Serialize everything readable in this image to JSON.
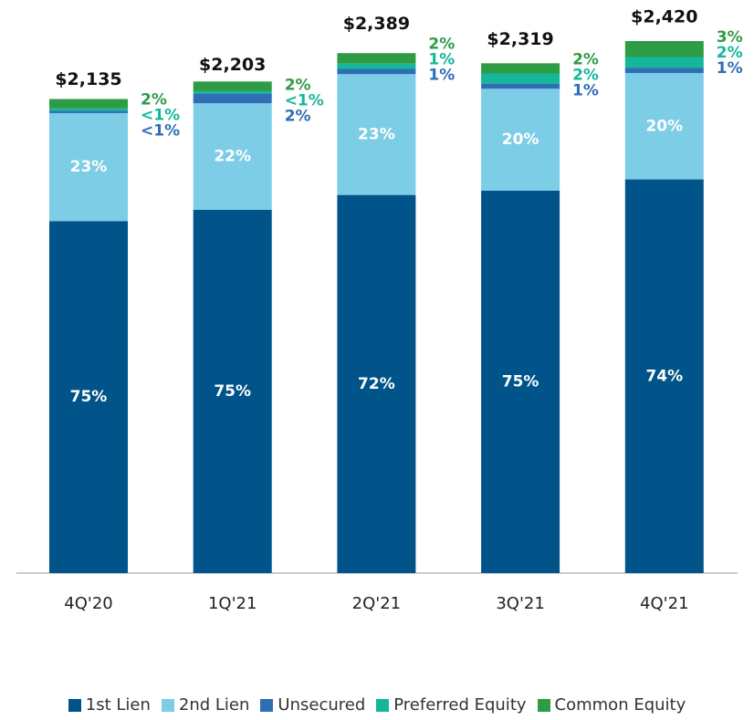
{
  "chart_data": {
    "type": "stacked-bar",
    "categories": [
      "4Q'20",
      "1Q'21",
      "2Q'21",
      "3Q'21",
      "4Q'21"
    ],
    "totals": {
      "values": [
        2135,
        2203,
        2389,
        2319,
        2420
      ],
      "value_labels": [
        "$2,135",
        "$2,203",
        "$2,389",
        "$2,319",
        "$2,420"
      ]
    },
    "series": [
      {
        "name": "1st Lien",
        "color": "#00548a",
        "values": [
          75,
          75,
          72,
          75,
          74
        ],
        "value_labels": [
          "75%",
          "75%",
          "72%",
          "75%",
          "74%"
        ]
      },
      {
        "name": "2nd Lien",
        "color": "#7dcde6",
        "values": [
          23,
          22,
          23,
          20,
          20
        ],
        "value_labels": [
          "23%",
          "22%",
          "23%",
          "20%",
          "20%"
        ]
      },
      {
        "name": "Unsecured",
        "color": "#2f6db5",
        "values": [
          0.5,
          2,
          1,
          1,
          1
        ],
        "value_labels": [
          "<1%",
          "2%",
          "1%",
          "1%",
          "1%"
        ]
      },
      {
        "name": "Preferred Equity",
        "color": "#14b79a",
        "values": [
          0.5,
          0.5,
          1,
          2,
          2
        ],
        "value_labels": [
          "<1%",
          "<1%",
          "1%",
          "2%",
          "2%"
        ]
      },
      {
        "name": "Common Equity",
        "color": "#2e9b45",
        "values": [
          2,
          2,
          2,
          2,
          3
        ],
        "value_labels": [
          "2%",
          "2%",
          "2%",
          "2%",
          "3%"
        ]
      }
    ]
  }
}
